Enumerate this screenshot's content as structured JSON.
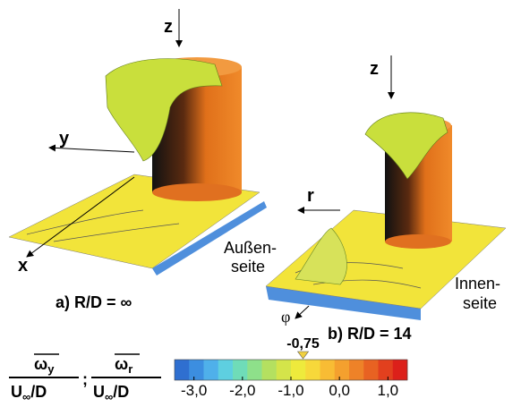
{
  "axes": {
    "left": {
      "z": "z",
      "y": "y",
      "x": "x"
    },
    "right": {
      "z": "z",
      "r": "r",
      "phi": "φ"
    }
  },
  "side_labels": {
    "outer": [
      "Außen-",
      "seite"
    ],
    "inner": [
      "Innen-",
      "seite"
    ]
  },
  "captions": {
    "a": "a) R/D = ∞",
    "b": "b) R/D = 14"
  },
  "legend": {
    "fraction_1": {
      "numerator": "ω",
      "numerator_sub": "y",
      "denominator": "U",
      "denominator_sub": "∞",
      "denominator_rest": "/D"
    },
    "separator": ";",
    "fraction_2": {
      "numerator": "ω",
      "numerator_sub": "r",
      "denominator": "U",
      "denominator_sub": "∞",
      "denominator_rest": "/D"
    }
  },
  "colorbar": {
    "range": [
      -3.4,
      1.4
    ],
    "ticks": [
      {
        "value": -3,
        "label": "-3,0"
      },
      {
        "value": -2,
        "label": "-2,0"
      },
      {
        "value": -1,
        "label": "-1,0"
      },
      {
        "value": 0,
        "label": "0,0"
      },
      {
        "value": 1,
        "label": "1,0"
      }
    ],
    "marker": {
      "value": -0.75,
      "label": "-0,75"
    }
  }
}
